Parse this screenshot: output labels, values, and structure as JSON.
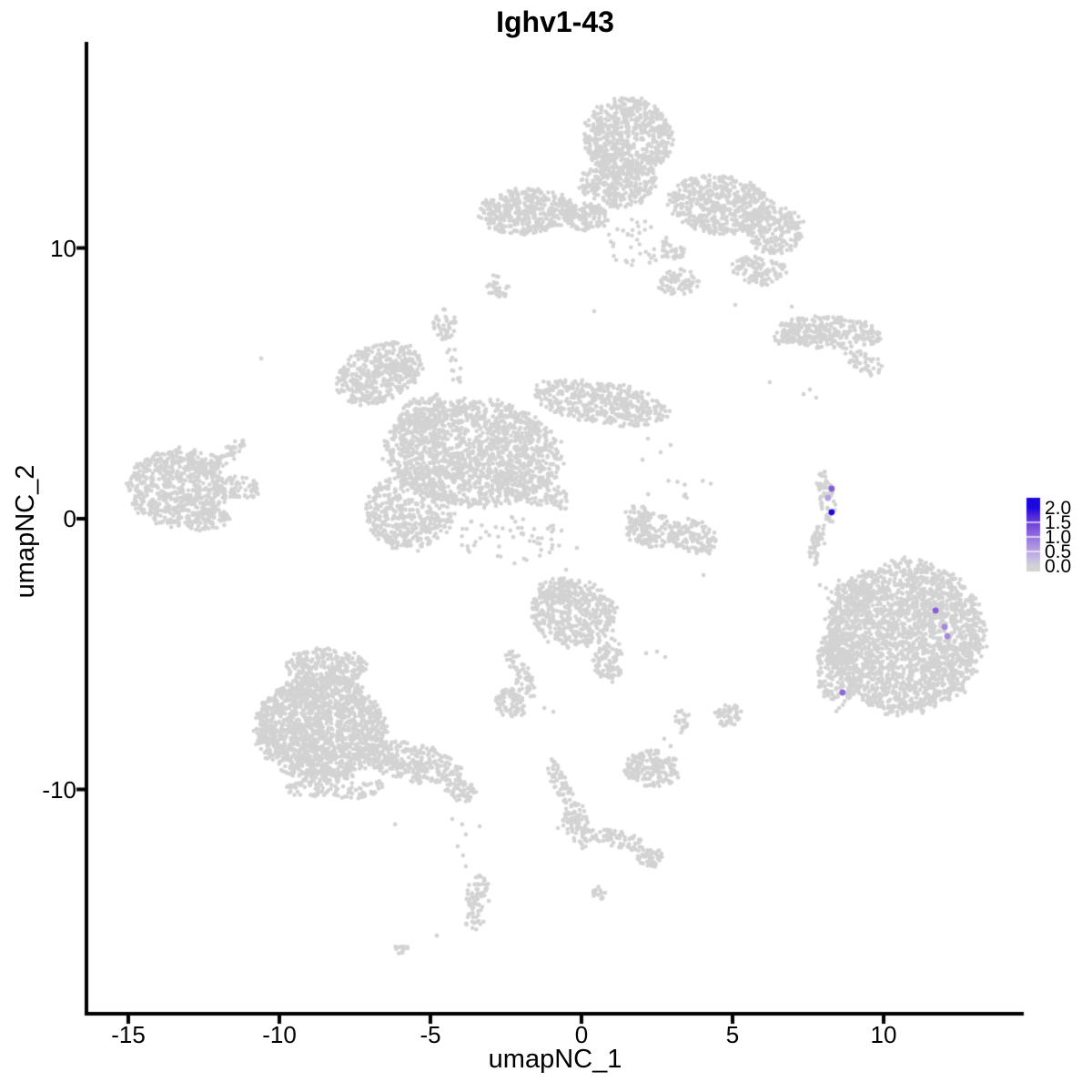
{
  "title": "Ighv1-43",
  "chart_data": {
    "type": "scatter",
    "subtype": "umap-feature-plot",
    "title": "Ighv1-43",
    "xlabel": "umapNC_1",
    "ylabel": "umapNC_2",
    "xlim": [
      -16.4,
      14.6
    ],
    "ylim": [
      -18.3,
      17.6
    ],
    "grid": false,
    "x_tick_values": [
      -15,
      -10,
      -5,
      0,
      5,
      10
    ],
    "x_tick_labels": [
      "-15",
      "-10",
      "-5",
      "0",
      "5",
      "10"
    ],
    "y_tick_values": [
      10,
      0,
      -10
    ],
    "y_tick_labels": [
      "10",
      "0",
      "-10"
    ],
    "colors": {
      "background_point": "#d3d3d3",
      "low": "#d3d3d3",
      "high": "#0d00e0",
      "axis": "#000000",
      "gradient_stops": [
        [
          0.0,
          "#d3d3d3"
        ],
        [
          0.25,
          "#c7bbe4"
        ],
        [
          0.5,
          "#b9a4e2"
        ],
        [
          0.75,
          "#a98ce0"
        ],
        [
          1.0,
          "#9771de"
        ],
        [
          1.25,
          "#8257db"
        ],
        [
          1.5,
          "#693dd9"
        ],
        [
          1.75,
          "#4a23dc"
        ],
        [
          2.0,
          "#1c07e0"
        ]
      ]
    },
    "legend": {
      "position": "right",
      "min": 0.0,
      "max": 2.0,
      "tick_values": [
        2.0,
        1.5,
        1.0,
        0.5,
        0.0
      ],
      "tick_labels": [
        "2.0",
        "1.5",
        "1.0",
        "0.5",
        "0.0"
      ]
    },
    "background_clusters": [
      {
        "name": "top-neck",
        "cx": 1.54,
        "cy": 14.1,
        "rx": 1.45,
        "ry": 1.45,
        "rot": -15,
        "n": 620
      },
      {
        "name": "top-neck-lower",
        "cx": 1.2,
        "cy": 12.4,
        "rx": 1.25,
        "ry": 0.9,
        "rot": 0,
        "n": 300
      },
      {
        "name": "top-body",
        "cx": 4.6,
        "cy": 11.6,
        "rx": 1.7,
        "ry": 1.05,
        "rot": -8,
        "n": 520
      },
      {
        "name": "top-body-droop",
        "cx": 6.4,
        "cy": 10.7,
        "rx": 0.95,
        "ry": 0.9,
        "rot": 20,
        "n": 220
      },
      {
        "name": "top-left-arm",
        "cx": -1.84,
        "cy": 11.36,
        "rx": 1.58,
        "ry": 0.84,
        "rot": 4,
        "n": 430
      },
      {
        "name": "top-connector",
        "cx": 0.18,
        "cy": 11.16,
        "rx": 0.72,
        "ry": 0.52,
        "rot": 0,
        "n": 110
      },
      {
        "name": "top-scatter",
        "cx": 1.9,
        "cy": 10.2,
        "rx": 1.05,
        "ry": 0.85,
        "rot": 0,
        "n": 40
      },
      {
        "name": "top-frag-a",
        "cx": 3.19,
        "cy": 8.74,
        "rx": 0.68,
        "ry": 0.5,
        "rot": 0,
        "n": 70
      },
      {
        "name": "top-frag-b",
        "cx": 5.9,
        "cy": 9.18,
        "rx": 0.95,
        "ry": 0.52,
        "rot": -10,
        "n": 110
      },
      {
        "name": "top-lump",
        "cx": 3.04,
        "cy": 9.85,
        "rx": 0.4,
        "ry": 0.34,
        "rot": 0,
        "n": 32
      },
      {
        "name": "top-small-blob",
        "cx": -2.77,
        "cy": 8.6,
        "rx": 0.34,
        "ry": 0.44,
        "rot": 25,
        "n": 30
      },
      {
        "name": "upper-right-main",
        "cx": 8.22,
        "cy": 6.86,
        "rx": 1.68,
        "ry": 0.58,
        "rot": -4,
        "n": 270
      },
      {
        "name": "upper-right-tip",
        "cx": 6.81,
        "cy": 6.66,
        "rx": 0.45,
        "ry": 0.28,
        "rot": 0,
        "n": 35
      },
      {
        "name": "upper-right-tail",
        "cx": 9.37,
        "cy": 5.78,
        "rx": 0.68,
        "ry": 0.38,
        "rot": -35,
        "n": 50
      },
      {
        "name": "small-round",
        "cx": -4.52,
        "cy": 7.19,
        "rx": 0.38,
        "ry": 0.55,
        "rot": 0,
        "n": 45
      },
      {
        "name": "small-round-chain",
        "cx": -4.19,
        "cy": 5.55,
        "rx": 0.22,
        "ry": 0.95,
        "rot": 12,
        "n": 14
      },
      {
        "name": "star-wing",
        "cx": -6.69,
        "cy": 5.38,
        "rx": 1.48,
        "ry": 1.02,
        "rot": 28,
        "n": 430
      },
      {
        "name": "star-wing-neck",
        "cx": -5.24,
        "cy": 3.87,
        "rx": 0.85,
        "ry": 0.62,
        "rot": 40,
        "n": 140
      },
      {
        "name": "star-right-arm",
        "cx": 0.63,
        "cy": 4.3,
        "rx": 2.28,
        "ry": 0.76,
        "rot": -10,
        "n": 430
      },
      {
        "name": "star-main",
        "cx": -3.58,
        "cy": 2.42,
        "rx": 2.88,
        "ry": 1.96,
        "rot": -5,
        "n": 1550
      },
      {
        "name": "star-lower-left",
        "cx": -5.69,
        "cy": 0.27,
        "rx": 1.47,
        "ry": 1.42,
        "rot": 0,
        "n": 460
      },
      {
        "name": "star-se-spur",
        "cx": -1.63,
        "cy": 1.08,
        "rx": 1.45,
        "ry": 0.48,
        "rot": -22,
        "n": 115
      },
      {
        "name": "star-fringe",
        "cx": -2.38,
        "cy": -0.67,
        "rx": 1.75,
        "ry": 0.95,
        "rot": 0,
        "n": 55
      },
      {
        "name": "far-left-main",
        "cx": -13.37,
        "cy": 1.14,
        "rx": 1.58,
        "ry": 1.42,
        "rot": 0,
        "n": 640
      },
      {
        "name": "far-left-spur",
        "cx": -11.81,
        "cy": 2.35,
        "rx": 0.82,
        "ry": 0.3,
        "rot": 38,
        "n": 55
      },
      {
        "name": "far-left-wedge",
        "cx": -11.45,
        "cy": 1.14,
        "rx": 0.8,
        "ry": 0.45,
        "rot": -8,
        "n": 80
      },
      {
        "name": "far-left-bump",
        "cx": -12.38,
        "cy": -0.07,
        "rx": 0.73,
        "ry": 0.4,
        "rot": 10,
        "n": 70
      },
      {
        "name": "cap-left",
        "cx": 2.29,
        "cy": -0.44,
        "rx": 0.76,
        "ry": 0.68,
        "rot": 0,
        "n": 120
      },
      {
        "name": "cap-right",
        "cx": 3.7,
        "cy": -0.67,
        "rx": 0.85,
        "ry": 0.6,
        "rot": -20,
        "n": 120
      },
      {
        "name": "cap-hook",
        "cx": 1.84,
        "cy": 0.07,
        "rx": 0.42,
        "ry": 0.4,
        "rot": 0,
        "n": 40
      },
      {
        "name": "cap-scatter",
        "cx": 3.19,
        "cy": 1.11,
        "rx": 1.2,
        "ry": 0.62,
        "rot": 0,
        "n": 9
      },
      {
        "name": "sliver-upper",
        "cx": 8.1,
        "cy": 0.84,
        "rx": 0.26,
        "ry": 0.95,
        "rot": 8,
        "n": 60
      },
      {
        "name": "sliver-lower",
        "cx": 7.8,
        "cy": -0.94,
        "rx": 0.22,
        "ry": 0.82,
        "rot": -10,
        "n": 45
      },
      {
        "name": "sliver-scatter-s",
        "cx": 8.61,
        "cy": -3.53,
        "rx": 0.85,
        "ry": 1.3,
        "rot": 0,
        "n": 13
      },
      {
        "name": "right-big-main",
        "cx": 10.72,
        "cy": -4.37,
        "rx": 2.58,
        "ry": 2.78,
        "rot": 0,
        "n": 2300
      },
      {
        "name": "right-big-nw",
        "cx": 8.92,
        "cy": -2.86,
        "rx": 0.76,
        "ry": 0.68,
        "rot": 0,
        "n": 70
      },
      {
        "name": "right-big-west",
        "cx": 8.46,
        "cy": -5.55,
        "rx": 0.68,
        "ry": 1.52,
        "rot": 0,
        "n": 190
      },
      {
        "name": "center-main",
        "cx": -0.27,
        "cy": -3.53,
        "rx": 1.43,
        "ry": 1.22,
        "rot": 0,
        "n": 440
      },
      {
        "name": "center-top-bump",
        "cx": -0.81,
        "cy": -2.62,
        "rx": 0.62,
        "ry": 0.48,
        "rot": 0,
        "n": 65
      },
      {
        "name": "center-se-tail",
        "cx": 0.87,
        "cy": -5.11,
        "rx": 0.43,
        "ry": 0.75,
        "rot": -18,
        "n": 65
      },
      {
        "name": "center-se-tip",
        "cx": 1.02,
        "cy": -5.71,
        "rx": 0.3,
        "ry": 0.28,
        "rot": 0,
        "n": 26
      },
      {
        "name": "center-sw-tail",
        "cx": -2.02,
        "cy": -5.71,
        "rx": 0.3,
        "ry": 0.95,
        "rot": 25,
        "n": 55
      },
      {
        "name": "center-sw-blob",
        "cx": -2.32,
        "cy": -6.79,
        "rx": 0.55,
        "ry": 0.55,
        "rot": 0,
        "n": 75
      },
      {
        "name": "lower-mid-main",
        "cx": 2.32,
        "cy": -9.24,
        "rx": 0.92,
        "ry": 0.65,
        "rot": -5,
        "n": 170
      },
      {
        "name": "lower-mid-mini",
        "cx": 3.34,
        "cy": -7.5,
        "rx": 0.25,
        "ry": 0.4,
        "rot": 0,
        "n": 22
      },
      {
        "name": "lower-mid-triangle",
        "cx": 4.85,
        "cy": -7.26,
        "rx": 0.42,
        "ry": 0.44,
        "rot": 0,
        "n": 50
      },
      {
        "name": "bottom-left-top",
        "cx": -8.46,
        "cy": -5.48,
        "rx": 1.28,
        "ry": 0.7,
        "rot": 0,
        "n": 270
      },
      {
        "name": "bottom-left-main",
        "cx": -8.64,
        "cy": -7.73,
        "rx": 2.12,
        "ry": 1.9,
        "rot": 0,
        "n": 1650
      },
      {
        "name": "bottom-left-arm",
        "cx": -5.63,
        "cy": -9.01,
        "rx": 1.68,
        "ry": 0.68,
        "rot": -14,
        "n": 310
      },
      {
        "name": "bottom-left-armtip",
        "cx": -4.04,
        "cy": -10.02,
        "rx": 0.55,
        "ry": 0.4,
        "rot": -20,
        "n": 60
      },
      {
        "name": "bottom-left-fringe",
        "cx": -8.1,
        "cy": -9.92,
        "rx": 1.7,
        "ry": 0.45,
        "rot": 0,
        "n": 110
      },
      {
        "name": "bottom-column",
        "cx": -3.46,
        "cy": -14.22,
        "rx": 0.38,
        "ry": 1.02,
        "rot": -8,
        "n": 75
      },
      {
        "name": "bottom-mini",
        "cx": -6.02,
        "cy": -15.9,
        "rx": 0.28,
        "ry": 0.2,
        "rot": 30,
        "n": 12
      },
      {
        "name": "chain-upper",
        "cx": -0.72,
        "cy": -9.68,
        "rx": 0.28,
        "ry": 0.9,
        "rot": 22,
        "n": 55
      },
      {
        "name": "chain-lower",
        "cx": -0.15,
        "cy": -11.36,
        "rx": 0.44,
        "ry": 0.88,
        "rot": 10,
        "n": 85
      },
      {
        "name": "chain-right-arm",
        "cx": 1.17,
        "cy": -11.83,
        "rx": 0.98,
        "ry": 0.3,
        "rot": -14,
        "n": 65
      },
      {
        "name": "chain-end-blob",
        "cx": 2.29,
        "cy": -12.5,
        "rx": 0.46,
        "ry": 0.36,
        "rot": -10,
        "n": 50
      },
      {
        "name": "chain-mini",
        "cx": 0.57,
        "cy": -13.85,
        "rx": 0.25,
        "ry": 0.25,
        "rot": 0,
        "n": 18
      }
    ],
    "stray_points": [
      [
        0.42,
        7.66
      ],
      [
        6.96,
        7.83
      ],
      [
        5.09,
        7.9
      ],
      [
        -10.6,
        5.92
      ],
      [
        7.56,
        4.77
      ],
      [
        7.77,
        4.47
      ],
      [
        7.35,
        4.6
      ],
      [
        6.23,
        5.04
      ],
      [
        2.2,
        2.96
      ],
      [
        2.62,
        2.45
      ],
      [
        2.02,
        2.18
      ],
      [
        2.95,
        2.72
      ],
      [
        -0.66,
        -0.44
      ],
      [
        -0.15,
        -1.08
      ],
      [
        -0.51,
        -1.88
      ],
      [
        0.27,
        -2.35
      ],
      [
        4.04,
        -2.08
      ],
      [
        7.89,
        -2.45
      ],
      [
        8.31,
        -3.09
      ],
      [
        -1.23,
        -6.99
      ],
      [
        -0.93,
        -7.13
      ],
      [
        2.14,
        -4.97
      ],
      [
        2.5,
        -4.91
      ],
      [
        2.77,
        -5.11
      ],
      [
        2.74,
        -8.13
      ],
      [
        2.95,
        -8.4
      ],
      [
        2.53,
        -8.57
      ],
      [
        3.19,
        -7.13
      ],
      [
        -4.28,
        -11.09
      ],
      [
        -3.95,
        -11.29
      ],
      [
        -3.83,
        -11.66
      ],
      [
        -3.37,
        -11.36
      ],
      [
        -4.1,
        -12.1
      ],
      [
        -3.92,
        -12.44
      ],
      [
        -3.83,
        -12.84
      ],
      [
        -4.79,
        -15.4
      ],
      [
        -6.17,
        -11.29
      ],
      [
        -0.78,
        -11.43
      ]
    ],
    "expressing_cells": [
      {
        "x": 8.28,
        "y": 1.11,
        "value": 1.2
      },
      {
        "x": 8.16,
        "y": 0.77,
        "value": 0.55
      },
      {
        "x": 8.28,
        "y": 0.24,
        "value": 2.0
      },
      {
        "x": 11.72,
        "y": -3.39,
        "value": 1.2
      },
      {
        "x": 12.02,
        "y": -4.0,
        "value": 0.8
      },
      {
        "x": 12.11,
        "y": -4.34,
        "value": 0.8
      },
      {
        "x": 8.64,
        "y": -6.42,
        "value": 1.1
      }
    ]
  }
}
